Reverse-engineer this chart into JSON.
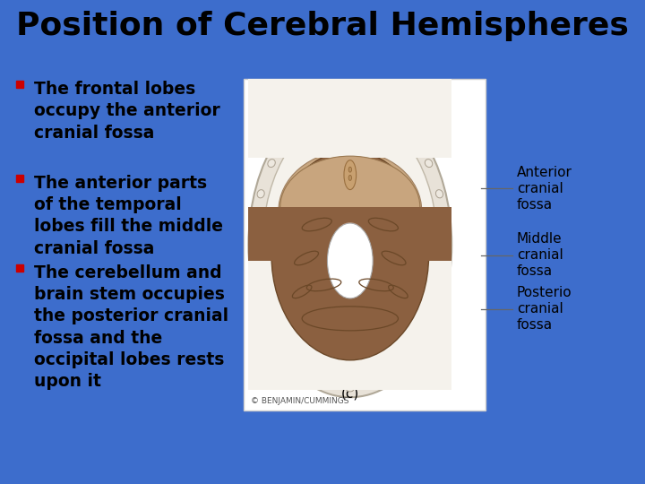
{
  "title": "Position of Cerebral Hemispheres",
  "title_fontsize": 26,
  "title_color": "#000000",
  "bg_color": "#3D6DCC",
  "bullet_color": "#CC0000",
  "text_color": "#000000",
  "bullets": [
    "The frontal lobes\noccupy the anterior\ncranial fossa",
    "The anterior parts\nof the temporal\nlobes fill the middle\ncranial fossa",
    "The cerebellum and\nbrain stem occupies\nthe posterior cranial\nfossa and the\noccipital lobes rests\nupon it"
  ],
  "bullet_fontsize": 13.5,
  "caption": "(c)",
  "copyright": "© BENJAMIN/CUMMINGS",
  "skull_outer_color": "#e8e2d8",
  "skull_border_color": "#b0a898",
  "skull_inner_color": "#f5f2ec",
  "ant_fossa_color": "#c9a882",
  "mid_post_fossa_color": "#8B6040",
  "mid_post_edge_color": "#6b4828",
  "foramen_color": "#ffffff",
  "ann_labels": [
    "Anterior\ncranial\nfossa",
    "Middle\ncranial\nfossa",
    "Posterio\ncranial\nfossa"
  ],
  "ann_fontsize": 11
}
